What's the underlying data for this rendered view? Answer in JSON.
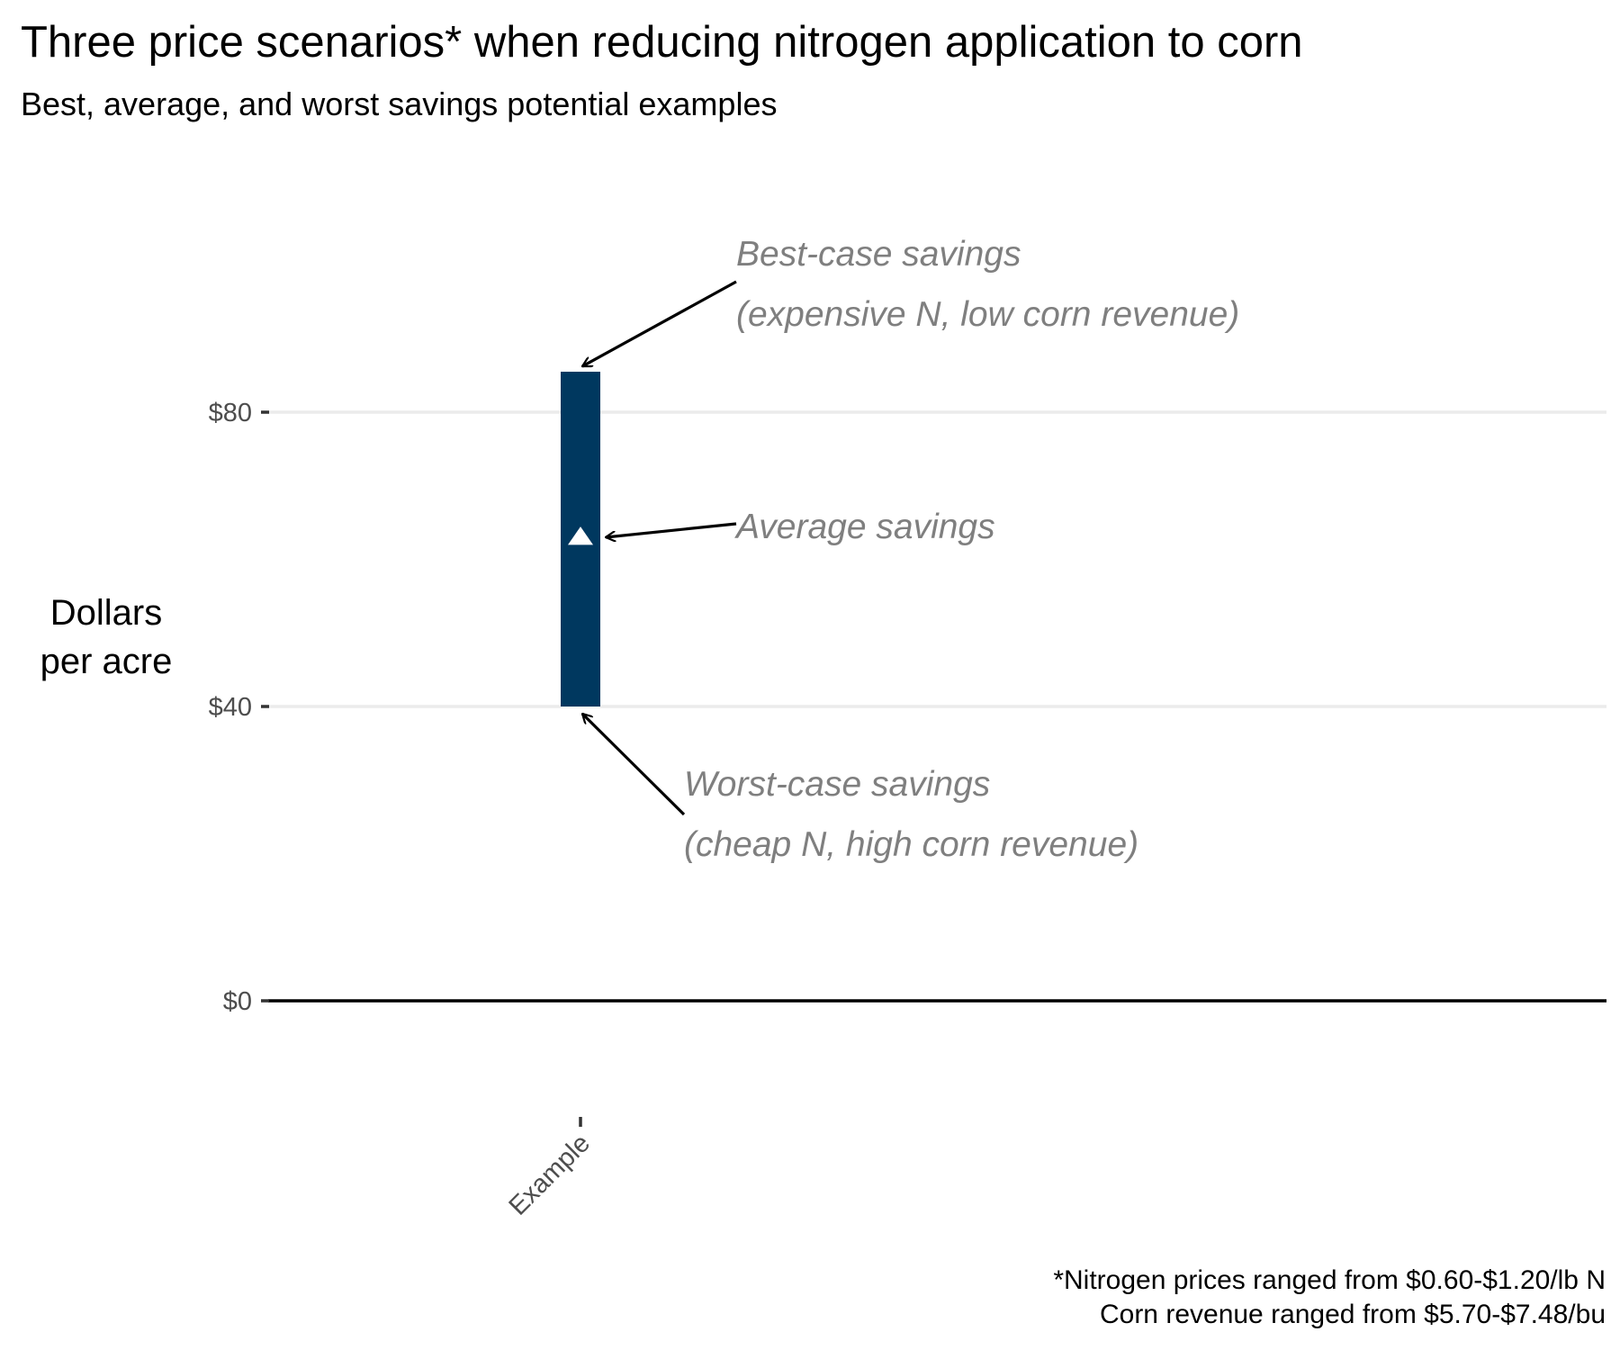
{
  "chart_data": {
    "type": "bar",
    "title": "Three price scenarios* when reducing nitrogen application to corn",
    "subtitle": "Best, average, and worst savings potential examples",
    "ylabel_lines": [
      "Dollars",
      "per acre"
    ],
    "categories": [
      "Example"
    ],
    "ranges": [
      {
        "category": "Example",
        "low": 40,
        "high": 85.5,
        "average": 63
      }
    ],
    "ylim": [
      -16,
      90
    ],
    "yticks": [
      0,
      40,
      80
    ],
    "ytick_labels": [
      "$0",
      "$40",
      "$80"
    ],
    "grid": true,
    "bar_color": "#00385f",
    "marker": "triangle",
    "annotations": [
      {
        "id": "best",
        "lines": [
          "Best-case savings",
          "(expensive N, low corn revenue)"
        ],
        "points_to": 85.5
      },
      {
        "id": "average",
        "lines": [
          "Average savings"
        ],
        "points_to": 63
      },
      {
        "id": "worst",
        "lines": [
          "Worst-case savings",
          "(cheap N, high corn revenue)"
        ],
        "points_to": 40
      }
    ],
    "caption_lines": [
      "*Nitrogen prices ranged from $0.60-$1.20/lb N",
      "Corn revenue ranged from $5.70-$7.48/bu"
    ]
  }
}
